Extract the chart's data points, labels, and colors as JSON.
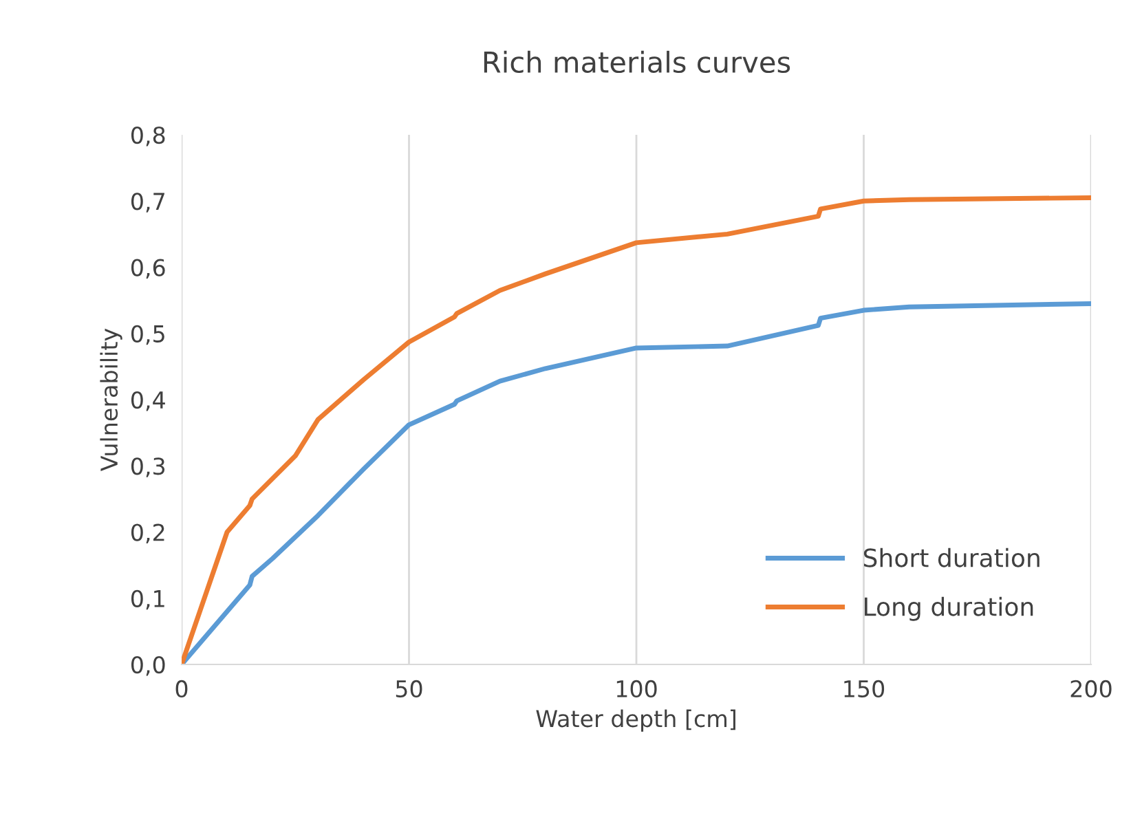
{
  "chart_data": {
    "type": "line",
    "title": "Rich materials curves",
    "xlabel": "Water depth [cm]",
    "ylabel": "Vulnerability",
    "series": [
      {
        "name": "Short duration",
        "color": "#5b9bd5",
        "x": [
          0,
          15,
          15.5,
          20,
          30,
          40,
          50,
          60,
          60.5,
          70,
          80,
          100,
          120,
          140,
          140.5,
          150,
          160,
          200
        ],
        "values": [
          0,
          0.12,
          0.133,
          0.16,
          0.225,
          0.295,
          0.362,
          0.393,
          0.398,
          0.428,
          0.447,
          0.478,
          0.481,
          0.512,
          0.523,
          0.535,
          0.54,
          0.545
        ]
      },
      {
        "name": "Long duration",
        "color": "#ed7d31",
        "x": [
          0,
          10,
          15,
          15.5,
          25,
          30,
          40,
          50,
          60,
          60.5,
          70,
          80,
          100,
          120,
          140,
          140.5,
          150,
          160,
          200
        ],
        "values": [
          0,
          0.2,
          0.24,
          0.25,
          0.315,
          0.37,
          0.43,
          0.487,
          0.525,
          0.53,
          0.565,
          0.59,
          0.637,
          0.65,
          0.677,
          0.688,
          0.7,
          0.702,
          0.705
        ]
      }
    ],
    "xlim": [
      0,
      200
    ],
    "xticks": [
      0,
      50,
      100,
      150,
      200
    ],
    "ylim": [
      0,
      0.8
    ],
    "yticks": [
      {
        "value": 0,
        "label": "0,0"
      },
      {
        "value": 0.1,
        "label": "0,1"
      },
      {
        "value": 0.2,
        "label": "0,2"
      },
      {
        "value": 0.3,
        "label": "0,3"
      },
      {
        "value": 0.4,
        "label": "0,4"
      },
      {
        "value": 0.5,
        "label": "0,5"
      },
      {
        "value": 0.6,
        "label": "0,6"
      },
      {
        "value": 0.7,
        "label": "0,7"
      },
      {
        "value": 0.8,
        "label": "0,8"
      }
    ],
    "grid": "x",
    "legend": "bottom right",
    "line_style": "solid",
    "marker": "none"
  }
}
